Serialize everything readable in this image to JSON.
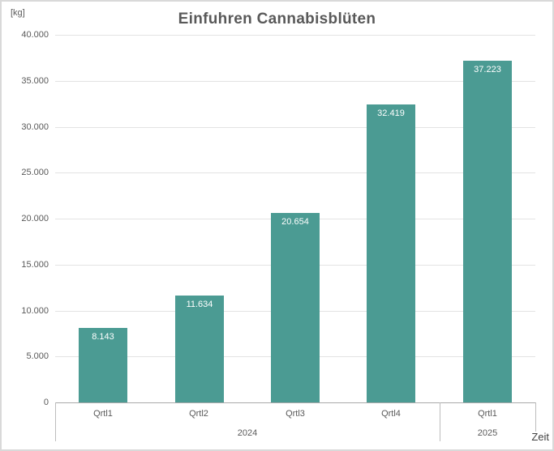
{
  "chart_data": {
    "type": "bar",
    "title": "Einfuhren Cannabisblüten",
    "y_unit_label": "[kg]",
    "x_axis_title": "Zeit",
    "categories": [
      "Qrtl1",
      "Qrtl2",
      "Qrtl3",
      "Qrtl4",
      "Qrtl1"
    ],
    "category_groups": [
      {
        "label": "2024",
        "span": 4
      },
      {
        "label": "2025",
        "span": 1
      }
    ],
    "values": [
      8143,
      11634,
      20654,
      32419,
      37223
    ],
    "value_labels": [
      "8.143",
      "11.634",
      "20.654",
      "32.419",
      "37.223"
    ],
    "ylim": [
      0,
      40000
    ],
    "y_ticks": [
      {
        "value": 0,
        "label": "0"
      },
      {
        "value": 5000,
        "label": "5.000"
      },
      {
        "value": 10000,
        "label": "10.000"
      },
      {
        "value": 15000,
        "label": "15.000"
      },
      {
        "value": 20000,
        "label": "20.000"
      },
      {
        "value": 25000,
        "label": "25.000"
      },
      {
        "value": 30000,
        "label": "30.000"
      },
      {
        "value": 35000,
        "label": "35.000"
      },
      {
        "value": 40000,
        "label": "40.000"
      }
    ],
    "grid": true,
    "legend": "none",
    "bar_color": "#4b9b93",
    "value_label_color": "#ffffff"
  }
}
